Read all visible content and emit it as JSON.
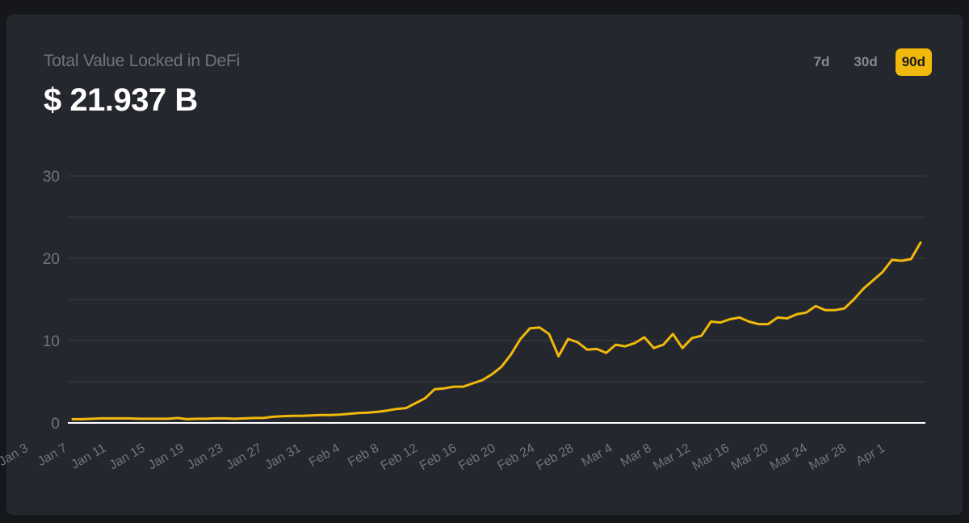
{
  "header": {
    "title": "Total Value Locked in DeFi",
    "value": "$ 21.937 B"
  },
  "ranges": [
    {
      "label": "7d",
      "active": false
    },
    {
      "label": "30d",
      "active": false
    },
    {
      "label": "90d",
      "active": true
    }
  ],
  "colors": {
    "accent": "#f0b90b",
    "background": "#25272e",
    "text_muted": "#6f747f"
  },
  "chart_data": {
    "type": "line",
    "title": "Total Value Locked in DeFi",
    "xlabel": "",
    "ylabel": "",
    "ylim": [
      0,
      30
    ],
    "yticks": [
      0,
      10,
      20,
      30
    ],
    "xticks": [
      "Jan 3",
      "Jan 7",
      "Jan 11",
      "Jan 15",
      "Jan 19",
      "Jan 23",
      "Jan 27",
      "Jan 31",
      "Feb 4",
      "Feb 8",
      "Feb 12",
      "Feb 16",
      "Feb 20",
      "Feb 24",
      "Feb 28",
      "Mar 4",
      "Mar 8",
      "Mar 12",
      "Mar 16",
      "Mar 20",
      "Mar 24",
      "Mar 28",
      "Apr 1"
    ],
    "grid": true,
    "series": [
      {
        "values": [
          0.45,
          0.45,
          0.5,
          0.55,
          0.55,
          0.55,
          0.55,
          0.5,
          0.5,
          0.5,
          0.5,
          0.6,
          0.45,
          0.5,
          0.5,
          0.55,
          0.55,
          0.5,
          0.55,
          0.6,
          0.6,
          0.75,
          0.8,
          0.85,
          0.85,
          0.9,
          0.95,
          0.95,
          1.0,
          1.1,
          1.2,
          1.25,
          1.35,
          1.5,
          1.7,
          1.8,
          2.4,
          3.0,
          4.1,
          4.2,
          4.4,
          4.4,
          4.8,
          5.2,
          5.9,
          6.8,
          8.3,
          10.2,
          11.5,
          11.6,
          10.8,
          8.1,
          10.2,
          9.8,
          8.9,
          9.0,
          8.5,
          9.5,
          9.3,
          9.7,
          10.4,
          9.1,
          9.5,
          10.8,
          9.1,
          10.3,
          10.6,
          12.3,
          12.2,
          12.6,
          12.8,
          12.3,
          12.0,
          12.0,
          12.8,
          12.7,
          13.2,
          13.4,
          14.2,
          13.7,
          13.7,
          13.9,
          15.0,
          16.3,
          17.3,
          18.3,
          19.8,
          19.7,
          19.9,
          21.9
        ]
      }
    ]
  }
}
